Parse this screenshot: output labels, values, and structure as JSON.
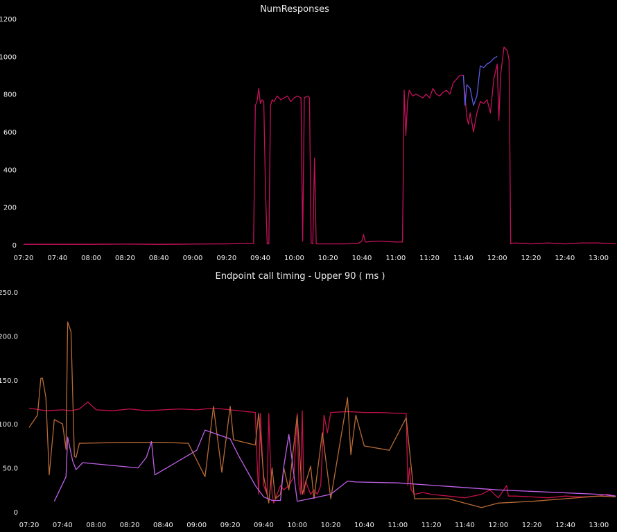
{
  "chart_data": [
    {
      "type": "line",
      "title": "NumResponses",
      "xlabel": "",
      "ylabel": "",
      "ylim": [
        0,
        1200
      ],
      "xlim": [
        "07:20",
        "13:10"
      ],
      "y_ticks": [
        "0",
        "200",
        "400",
        "600",
        "800",
        "1000",
        "1200"
      ],
      "x_ticks": [
        "07:20",
        "07:40",
        "08:00",
        "08:20",
        "08:40",
        "09:00",
        "09:20",
        "09:40",
        "10:00",
        "10:20",
        "10:40",
        "11:00",
        "11:20",
        "11:40",
        "12:00",
        "12:20",
        "12:40",
        "13:00"
      ],
      "grid": false,
      "legend": "none",
      "series": [
        {
          "color": "#c4125a",
          "points": [
            [
              "07:20",
              3
            ],
            [
              "07:40",
              3
            ],
            [
              "08:00",
              3
            ],
            [
              "08:20",
              4
            ],
            [
              "08:40",
              3
            ],
            [
              "09:00",
              4
            ],
            [
              "09:20",
              5
            ],
            [
              "09:30",
              7
            ],
            [
              "09:36",
              8
            ],
            [
              "09:37",
              740
            ],
            [
              "09:38",
              760
            ],
            [
              "09:39",
              830
            ],
            [
              "09:40",
              750
            ],
            [
              "09:41",
              770
            ],
            [
              "09:42",
              760
            ],
            [
              "09:43",
              300
            ],
            [
              "09:44",
              5
            ],
            [
              "09:45",
              5
            ],
            [
              "09:46",
              740
            ],
            [
              "09:47",
              770
            ],
            [
              "09:48",
              760
            ],
            [
              "09:50",
              790
            ],
            [
              "09:52",
              770
            ],
            [
              "09:54",
              780
            ],
            [
              "09:56",
              790
            ],
            [
              "09:58",
              760
            ],
            [
              "10:00",
              780
            ],
            [
              "10:02",
              790
            ],
            [
              "10:04",
              780
            ],
            [
              "10:05",
              20
            ],
            [
              "10:06",
              780
            ],
            [
              "10:08",
              790
            ],
            [
              "10:09",
              780
            ],
            [
              "10:10",
              10
            ],
            [
              "10:11",
              5
            ],
            [
              "10:12",
              460
            ],
            [
              "10:13",
              5
            ],
            [
              "10:20",
              5
            ],
            [
              "10:30",
              5
            ],
            [
              "10:38",
              8
            ],
            [
              "10:40",
              20
            ],
            [
              "10:41",
              55
            ],
            [
              "10:42",
              15
            ],
            [
              "10:50",
              20
            ],
            [
              "11:00",
              15
            ],
            [
              "11:04",
              15
            ],
            [
              "11:05",
              820
            ],
            [
              "11:06",
              580
            ],
            [
              "11:07",
              760
            ],
            [
              "11:08",
              820
            ],
            [
              "11:10",
              790
            ],
            [
              "11:12",
              800
            ],
            [
              "11:14",
              790
            ],
            [
              "11:16",
              780
            ],
            [
              "11:18",
              800
            ],
            [
              "11:20",
              780
            ],
            [
              "11:22",
              830
            ],
            [
              "11:24",
              800
            ],
            [
              "11:26",
              790
            ],
            [
              "11:28",
              810
            ],
            [
              "11:30",
              820
            ],
            [
              "11:32",
              800
            ],
            [
              "11:34",
              860
            ],
            [
              "11:36",
              880
            ],
            [
              "11:38",
              900
            ],
            [
              "11:40",
              900
            ],
            [
              "11:42",
              680
            ],
            [
              "11:43",
              640
            ],
            [
              "11:44",
              700
            ],
            [
              "11:46",
              600
            ],
            [
              "11:48",
              700
            ],
            [
              "11:50",
              760
            ],
            [
              "11:52",
              750
            ],
            [
              "11:54",
              770
            ],
            [
              "11:56",
              700
            ],
            [
              "11:58",
              880
            ],
            [
              "12:00",
              960
            ],
            [
              "12:01",
              660
            ],
            [
              "12:02",
              900
            ],
            [
              "12:04",
              1050
            ],
            [
              "12:06",
              1030
            ],
            [
              "12:07",
              980
            ],
            [
              "12:08",
              5
            ],
            [
              "12:10",
              10
            ],
            [
              "12:20",
              5
            ],
            [
              "12:30",
              10
            ],
            [
              "12:40",
              5
            ],
            [
              "12:50",
              10
            ],
            [
              "13:00",
              10
            ],
            [
              "13:10",
              5
            ]
          ]
        },
        {
          "color": "#5a5ae6",
          "points": [
            [
              "11:40",
              900
            ],
            [
              "11:41",
              740
            ],
            [
              "11:42",
              850
            ],
            [
              "11:44",
              830
            ],
            [
              "11:46",
              740
            ],
            [
              "11:48",
              790
            ],
            [
              "11:50",
              950
            ],
            [
              "11:52",
              940
            ],
            [
              "11:54",
              960
            ],
            [
              "11:56",
              970
            ],
            [
              "11:58",
              990
            ],
            [
              "12:00",
              1000
            ]
          ]
        }
      ]
    },
    {
      "type": "line",
      "title": "Endpoint call timing - Upper 90 ( ms )",
      "xlabel": "",
      "ylabel": "",
      "ylim": [
        0,
        250
      ],
      "xlim": [
        "07:20",
        "13:10"
      ],
      "y_ticks": [
        "0",
        "50.0",
        "100.0",
        "150.0",
        "200.0",
        "250.0"
      ],
      "x_ticks": [
        "07:20",
        "07:40",
        "08:00",
        "08:20",
        "08:40",
        "09:00",
        "09:20",
        "09:40",
        "10:00",
        "10:20",
        "10:40",
        "11:00",
        "11:20",
        "11:40",
        "12:00",
        "12:20",
        "12:40",
        "13:00"
      ],
      "grid": false,
      "legend": "none",
      "series": [
        {
          "color": "#c4124a",
          "points": [
            [
              "07:20",
              118
            ],
            [
              "07:30",
              115
            ],
            [
              "07:40",
              116
            ],
            [
              "07:45",
              115
            ],
            [
              "07:50",
              117
            ],
            [
              "07:55",
              125
            ],
            [
              "08:00",
              116
            ],
            [
              "08:10",
              115
            ],
            [
              "08:20",
              117
            ],
            [
              "08:30",
              115
            ],
            [
              "08:40",
              116
            ],
            [
              "08:50",
              117
            ],
            [
              "09:00",
              116
            ],
            [
              "09:10",
              118
            ],
            [
              "09:20",
              116
            ],
            [
              "09:30",
              114
            ],
            [
              "09:35",
              113
            ],
            [
              "09:36",
              60
            ],
            [
              "09:37",
              20
            ],
            [
              "09:38",
              112
            ],
            [
              "09:40",
              30
            ],
            [
              "09:42",
              20
            ],
            [
              "09:43",
              112
            ],
            [
              "09:44",
              55
            ],
            [
              "09:45",
              20
            ],
            [
              "09:46",
              10
            ],
            [
              "09:48",
              20
            ],
            [
              "09:50",
              30
            ],
            [
              "09:52",
              25
            ],
            [
              "09:55",
              30
            ],
            [
              "09:58",
              40
            ],
            [
              "10:00",
              112
            ],
            [
              "10:01",
              30
            ],
            [
              "10:02",
              20
            ],
            [
              "10:03",
              115
            ],
            [
              "10:04",
              20
            ],
            [
              "10:05",
              35
            ],
            [
              "10:08",
              20
            ],
            [
              "10:10",
              25
            ],
            [
              "10:12",
              20
            ],
            [
              "10:14",
              30
            ],
            [
              "10:16",
              110
            ],
            [
              "10:18",
              90
            ],
            [
              "10:20",
              113
            ],
            [
              "10:30",
              114
            ],
            [
              "10:40",
              113
            ],
            [
              "10:50",
              113
            ],
            [
              "11:00",
              112
            ],
            [
              "11:05",
              112
            ],
            [
              "11:06",
              30
            ],
            [
              "11:07",
              50
            ],
            [
              "11:08",
              25
            ],
            [
              "11:10",
              20
            ],
            [
              "11:15",
              22
            ],
            [
              "11:20",
              20
            ],
            [
              "11:30",
              18
            ],
            [
              "11:40",
              16
            ],
            [
              "11:50",
              20
            ],
            [
              "11:55",
              25
            ],
            [
              "12:00",
              16
            ],
            [
              "12:05",
              30
            ],
            [
              "12:06",
              18
            ],
            [
              "12:10",
              18
            ],
            [
              "12:20",
              17
            ],
            [
              "12:30",
              16
            ],
            [
              "12:40",
              18
            ],
            [
              "12:50",
              17
            ],
            [
              "13:00",
              18
            ],
            [
              "13:05",
              20
            ],
            [
              "13:10",
              18
            ]
          ]
        },
        {
          "color": "#b86a36",
          "points": [
            [
              "07:20",
              96
            ],
            [
              "07:25",
              110
            ],
            [
              "07:27",
              152
            ],
            [
              "07:28",
              152
            ],
            [
              "07:30",
              130
            ],
            [
              "07:32",
              42
            ],
            [
              "07:35",
              105
            ],
            [
              "07:40",
              100
            ],
            [
              "07:42",
              71
            ],
            [
              "07:43",
              216
            ],
            [
              "07:45",
              205
            ],
            [
              "07:47",
              63
            ],
            [
              "07:48",
              62
            ],
            [
              "07:50",
              78
            ],
            [
              "08:20",
              79
            ],
            [
              "08:40",
              79
            ],
            [
              "08:55",
              78
            ],
            [
              "09:05",
              40
            ],
            [
              "09:10",
              120
            ],
            [
              "09:15",
              45
            ],
            [
              "09:20",
              120
            ],
            [
              "09:22",
              82
            ],
            [
              "09:35",
              76
            ],
            [
              "09:37",
              112
            ],
            [
              "09:40",
              40
            ],
            [
              "09:43",
              10
            ],
            [
              "09:45",
              50
            ],
            [
              "09:47",
              15
            ],
            [
              "09:50",
              20
            ],
            [
              "09:52",
              50
            ],
            [
              "09:55",
              25
            ],
            [
              "10:00",
              110
            ],
            [
              "10:03",
              20
            ],
            [
              "10:08",
              52
            ],
            [
              "10:10",
              15
            ],
            [
              "10:15",
              90
            ],
            [
              "10:20",
              15
            ],
            [
              "10:30",
              130
            ],
            [
              "10:32",
              65
            ],
            [
              "10:35",
              110
            ],
            [
              "10:40",
              75
            ],
            [
              "10:55",
              70
            ],
            [
              "11:05",
              107
            ],
            [
              "11:10",
              15
            ],
            [
              "11:30",
              15
            ],
            [
              "11:50",
              5
            ],
            [
              "12:00",
              10
            ],
            [
              "12:20",
              12
            ],
            [
              "12:40",
              15
            ],
            [
              "13:00",
              18
            ],
            [
              "13:10",
              17
            ]
          ]
        },
        {
          "color": "#c060e8",
          "points": [
            [
              "07:35",
              12
            ],
            [
              "07:42",
              40
            ],
            [
              "07:43",
              85
            ],
            [
              "07:46",
              58
            ],
            [
              "07:48",
              48
            ],
            [
              "07:52",
              56
            ],
            [
              "08:25",
              50
            ],
            [
              "08:30",
              62
            ],
            [
              "08:33",
              80
            ],
            [
              "08:35",
              42
            ],
            [
              "09:00",
              70
            ],
            [
              "09:05",
              93
            ],
            [
              "09:20",
              83
            ],
            [
              "09:25",
              64
            ],
            [
              "09:35",
              30
            ],
            [
              "09:40",
              17
            ],
            [
              "09:45",
              13
            ],
            [
              "09:50",
              13
            ],
            [
              "09:52",
              52
            ],
            [
              "09:55",
              88
            ],
            [
              "10:00",
              12
            ],
            [
              "10:10",
              16
            ],
            [
              "10:20",
              20
            ],
            [
              "10:30",
              35
            ],
            [
              "10:35",
              34
            ],
            [
              "11:00",
              33
            ],
            [
              "12:00",
              25
            ],
            [
              "13:00",
              20
            ],
            [
              "13:10",
              18
            ]
          ]
        }
      ]
    }
  ]
}
